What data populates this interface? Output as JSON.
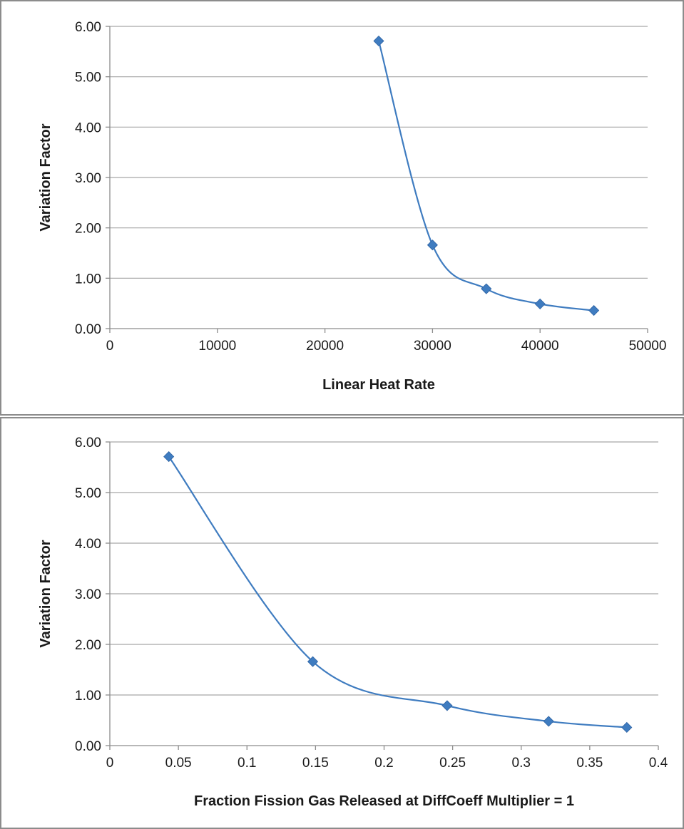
{
  "chart_data": [
    {
      "type": "scatter",
      "line": "smooth",
      "markers": "diamond",
      "color": "#3f7cc0",
      "grid": "horizontal",
      "legend": "none",
      "xlabel": "Linear Heat Rate",
      "ylabel": "Variation Factor",
      "xlim": [
        0,
        50000
      ],
      "ylim": [
        0,
        6
      ],
      "xticks": [
        "0",
        "10000",
        "20000",
        "30000",
        "40000",
        "50000"
      ],
      "yticks": [
        "0.00",
        "1.00",
        "2.00",
        "3.00",
        "4.00",
        "5.00",
        "6.00"
      ],
      "x": [
        25000,
        30000,
        35000,
        40000,
        45000
      ],
      "y": [
        5.71,
        1.66,
        0.79,
        0.49,
        0.36
      ]
    },
    {
      "type": "scatter",
      "line": "smooth",
      "markers": "diamond",
      "color": "#3f7cc0",
      "grid": "horizontal",
      "legend": "none",
      "xlabel": "Fraction Fission Gas Released at DiffCoeff Multiplier = 1",
      "ylabel": "Variation Factor",
      "xlim": [
        0,
        0.4
      ],
      "ylim": [
        0,
        6
      ],
      "xticks": [
        "0",
        "0.05",
        "0.1",
        "0.15",
        "0.2",
        "0.25",
        "0.3",
        "0.35",
        "0.4"
      ],
      "yticks": [
        "0.00",
        "1.00",
        "2.00",
        "3.00",
        "4.00",
        "5.00",
        "6.00"
      ],
      "x": [
        0.043,
        0.148,
        0.246,
        0.32,
        0.377
      ],
      "y": [
        5.71,
        1.66,
        0.79,
        0.48,
        0.36
      ]
    }
  ]
}
